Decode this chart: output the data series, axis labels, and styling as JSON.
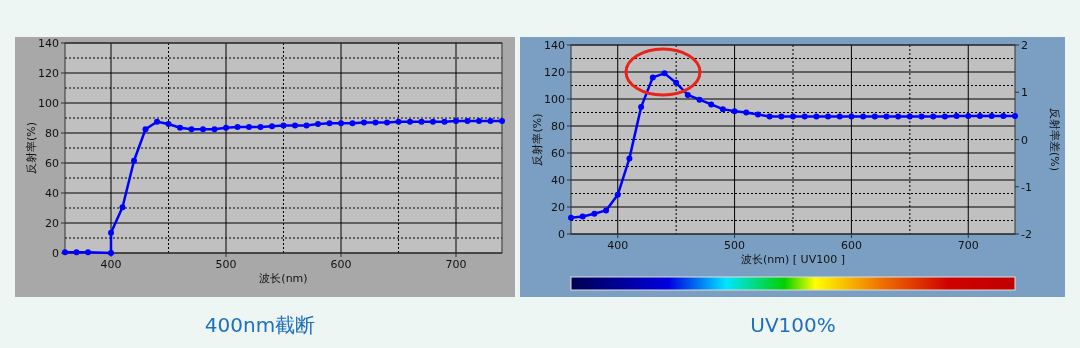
{
  "chart_data": [
    {
      "type": "line",
      "title": "400nm截断",
      "xlabel": "波长(nm)",
      "ylabel": "反射率(%)",
      "color": "#0000ff",
      "marker": "circle",
      "grid": true,
      "x": [
        360,
        370,
        380,
        400,
        400,
        410,
        420,
        430,
        440,
        450,
        460,
        470,
        480,
        490,
        500,
        510,
        520,
        530,
        540,
        550,
        560,
        570,
        580,
        590,
        600,
        610,
        620,
        630,
        640,
        650,
        660,
        670,
        680,
        690,
        700,
        710,
        720,
        730,
        740
      ],
      "values": [
        0.5,
        0.5,
        0.5,
        0,
        13.5,
        30.5,
        61.5,
        82.5,
        87.5,
        86,
        83.5,
        82.5,
        82.5,
        82.5,
        83.5,
        84,
        84,
        84,
        84.5,
        85,
        85,
        85,
        86,
        86.5,
        86.5,
        86.5,
        87,
        87,
        87,
        87.5,
        87.5,
        87.5,
        87.5,
        87.5,
        88,
        88,
        88,
        88,
        88
      ],
      "xlim": [
        360,
        740
      ],
      "ylim": [
        0,
        140
      ],
      "xticks": [
        400,
        500,
        600,
        700
      ],
      "yticks": [
        0,
        20,
        40,
        60,
        80,
        100,
        120,
        140
      ]
    },
    {
      "type": "line",
      "title": "UV100%",
      "xlabel": "波长(nm) [ UV100 ]",
      "ylabel": "反射率(%)",
      "y2label": "反射率差(%)",
      "color": "#0000ff",
      "marker": "circle",
      "grid": true,
      "x": [
        360,
        370,
        380,
        390,
        400,
        410,
        420,
        430,
        440,
        450,
        460,
        470,
        480,
        490,
        500,
        510,
        520,
        530,
        540,
        550,
        560,
        570,
        580,
        590,
        600,
        610,
        620,
        630,
        640,
        650,
        660,
        670,
        680,
        690,
        700,
        710,
        720,
        730,
        740
      ],
      "values": [
        12,
        13,
        15,
        17.5,
        29,
        56,
        94,
        116,
        119,
        112,
        103,
        99.5,
        96,
        92.5,
        91,
        90,
        88.5,
        87,
        87,
        87,
        87,
        87,
        87,
        87,
        87,
        87,
        87,
        87,
        87,
        87,
        87,
        87,
        87,
        87.5,
        87.5,
        87.5,
        87.5,
        87.5,
        87.5
      ],
      "xlim": [
        360,
        740
      ],
      "ylim": [
        0,
        140
      ],
      "xticks": [
        400,
        500,
        600,
        700
      ],
      "yticks": [
        0,
        20,
        40,
        60,
        80,
        100,
        120,
        140
      ],
      "y2lim": [
        -2,
        2
      ],
      "y2ticks": [
        -2,
        -1,
        0,
        1,
        2
      ]
    }
  ]
}
